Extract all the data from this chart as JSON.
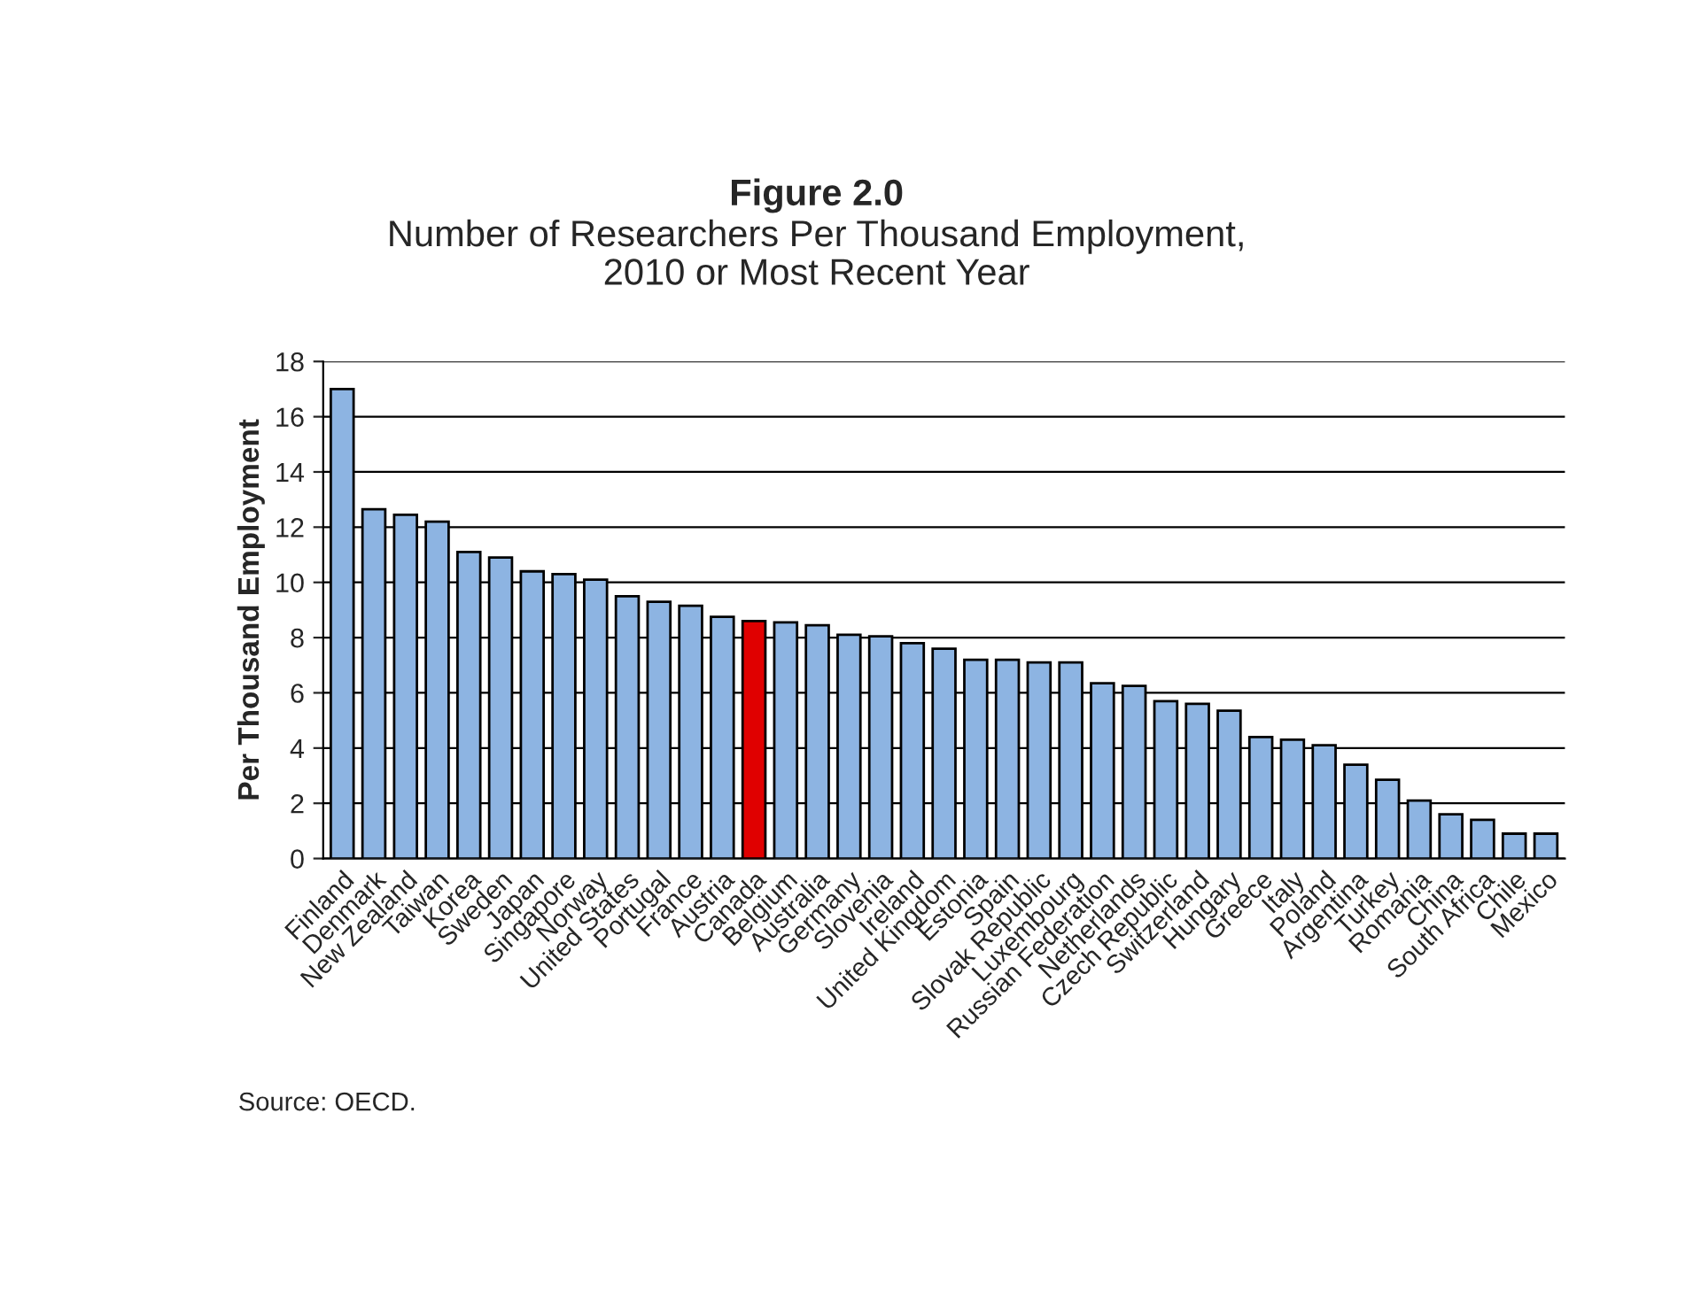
{
  "chart_data": {
    "type": "bar",
    "title": "Figure 2.0",
    "subtitle": "Number of Researchers Per Thousand Employment,\n2010 or Most Recent Year",
    "ylabel": "Per Thousand Employment",
    "categories": [
      "Finland",
      "Denmark",
      "New Zealand",
      "Taiwan",
      "Korea",
      "Sweden",
      "Japan",
      "Singapore",
      "Norway",
      "United States",
      "Portugal",
      "France",
      "Austria",
      "Canada",
      "Belgium",
      "Australia",
      "Germany",
      "Slovenia",
      "Ireland",
      "United Kingdom",
      "Estonia",
      "Spain",
      "Slovak Republic",
      "Luxembourg",
      "Russian Federation",
      "Netherlands",
      "Czech Republic",
      "Switzerland",
      "Hungary",
      "Greece",
      "Italy",
      "Poland",
      "Argentina",
      "Turkey",
      "Romania",
      "China",
      "South Africa",
      "Chile",
      "Mexico"
    ],
    "values": [
      17.0,
      12.65,
      12.45,
      12.2,
      11.1,
      10.9,
      10.4,
      10.3,
      10.1,
      9.5,
      9.3,
      9.15,
      8.75,
      8.6,
      8.55,
      8.45,
      8.1,
      8.05,
      7.8,
      7.6,
      7.2,
      7.2,
      7.1,
      7.1,
      6.35,
      6.25,
      5.7,
      5.6,
      5.35,
      4.4,
      4.3,
      4.1,
      3.4,
      2.85,
      2.1,
      1.6,
      1.4,
      0.9,
      0.9
    ],
    "colors": [
      "#8db4e2",
      "#8db4e2",
      "#8db4e2",
      "#8db4e2",
      "#8db4e2",
      "#8db4e2",
      "#8db4e2",
      "#8db4e2",
      "#8db4e2",
      "#8db4e2",
      "#8db4e2",
      "#8db4e2",
      "#8db4e2",
      "#e00000",
      "#8db4e2",
      "#8db4e2",
      "#8db4e2",
      "#8db4e2",
      "#8db4e2",
      "#8db4e2",
      "#8db4e2",
      "#8db4e2",
      "#8db4e2",
      "#8db4e2",
      "#8db4e2",
      "#8db4e2",
      "#8db4e2",
      "#8db4e2",
      "#8db4e2",
      "#8db4e2",
      "#8db4e2",
      "#8db4e2",
      "#8db4e2",
      "#8db4e2",
      "#8db4e2",
      "#8db4e2",
      "#8db4e2",
      "#8db4e2",
      "#8db4e2"
    ],
    "ylim": [
      0,
      18
    ],
    "yticks": [
      0,
      2,
      4,
      6,
      8,
      10,
      12,
      14,
      16,
      18
    ],
    "grid": "y",
    "legend": false,
    "annotations": [
      "Source: OECD."
    ]
  }
}
